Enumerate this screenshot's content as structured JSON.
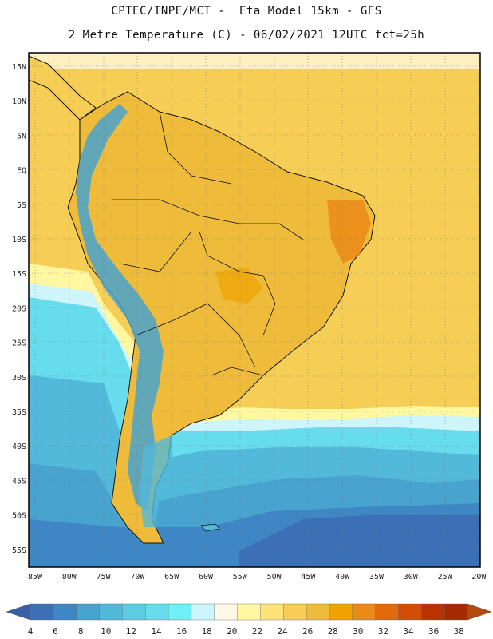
{
  "header": {
    "line1": "CPTEC/INPE/MCT -  Eta Model 15km - GFS",
    "line2": "2 Metre Temperature (C) - 06/02/2021 12UTC fct=25h"
  },
  "axes": {
    "lat_labels": [
      "15N",
      "10N",
      "5N",
      "EQ",
      "5S",
      "10S",
      "15S",
      "20S",
      "25S",
      "30S",
      "35S",
      "40S",
      "45S",
      "50S",
      "55S"
    ],
    "lon_labels": [
      "85W",
      "80W",
      "75W",
      "70W",
      "65W",
      "60W",
      "55W",
      "50W",
      "45W",
      "40W",
      "35W",
      "30W",
      "25W",
      "20W"
    ]
  },
  "colorbar": {
    "ticks": [
      "4",
      "6",
      "8",
      "10",
      "12",
      "14",
      "16",
      "18",
      "20",
      "22",
      "24",
      "26",
      "28",
      "30",
      "32",
      "34",
      "36",
      "38"
    ],
    "colors": [
      "#3b6fb6",
      "#3f86c4",
      "#49a3cf",
      "#52b9da",
      "#5ccbe3",
      "#66dcec",
      "#6ff0f7",
      "#cdf5fb",
      "#fff8e6",
      "#fff8a0",
      "#ffe27a",
      "#f6cd55",
      "#efbb3a",
      "#f0a300",
      "#ea8a18",
      "#e06a0c",
      "#d24d06",
      "#bb3202",
      "#a52a00"
    ],
    "left_arrow_color": "#3a5ea8",
    "right_arrow_color": "#b24a10"
  },
  "colors": {
    "ocean_warm": "#f6cd55",
    "ocean_cool": "#5ccbe3",
    "ocean_cold": "#3b6fb6",
    "land": "#efbb3a",
    "andes": "#49a3cf",
    "hot": "#ea8a18"
  }
}
